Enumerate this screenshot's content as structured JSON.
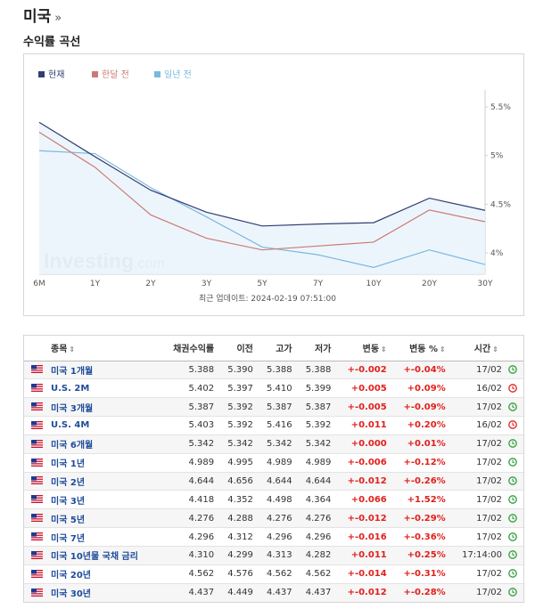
{
  "header": {
    "title": "미국",
    "chevron": "»"
  },
  "section": {
    "title": "수익률 곡선"
  },
  "chart_data": {
    "type": "line",
    "categories": [
      "6M",
      "1Y",
      "2Y",
      "3Y",
      "5Y",
      "7Y",
      "10Y",
      "20Y",
      "30Y"
    ],
    "series": [
      {
        "name": "현재",
        "color": "#2f3f73",
        "values": [
          5.342,
          4.989,
          4.644,
          4.418,
          4.276,
          4.296,
          4.31,
          4.562,
          4.437
        ]
      },
      {
        "name": "한달 전",
        "color": "#c97b73",
        "values": [
          5.24,
          4.88,
          4.39,
          4.15,
          4.03,
          4.07,
          4.11,
          4.44,
          4.32
        ]
      },
      {
        "name": "일년 전",
        "color": "#7ab8dd",
        "values": [
          5.05,
          5.02,
          4.67,
          4.37,
          4.06,
          3.98,
          3.85,
          4.03,
          3.88
        ]
      }
    ],
    "y_ticks": [
      "5.5%",
      "5%",
      "4.5%",
      "4%"
    ],
    "ylim": [
      3.78,
      5.62
    ],
    "watermark": {
      "main": "Investing",
      "suffix": ".com"
    },
    "update_label": "최근 업데이트: 2024-02-19 07:51:00",
    "legend_position": "top-left"
  },
  "table": {
    "columns": [
      "종목",
      "채권수익률",
      "이전",
      "고가",
      "저가",
      "변동",
      "변동 %",
      "시간"
    ],
    "rows": [
      {
        "name": "미국 1개월",
        "yield": "5.388",
        "prev": "5.390",
        "high": "5.388",
        "low": "5.388",
        "chg": "+-0.002",
        "pct": "+-0.04%",
        "time": "17/02",
        "status": "open"
      },
      {
        "name": "U.S. 2M",
        "yield": "5.402",
        "prev": "5.397",
        "high": "5.410",
        "low": "5.399",
        "chg": "+0.005",
        "pct": "+0.09%",
        "time": "16/02",
        "status": "closed"
      },
      {
        "name": "미국 3개월",
        "yield": "5.387",
        "prev": "5.392",
        "high": "5.387",
        "low": "5.387",
        "chg": "+-0.005",
        "pct": "+-0.09%",
        "time": "17/02",
        "status": "open"
      },
      {
        "name": "U.S. 4M",
        "yield": "5.403",
        "prev": "5.392",
        "high": "5.416",
        "low": "5.392",
        "chg": "+0.011",
        "pct": "+0.20%",
        "time": "16/02",
        "status": "closed"
      },
      {
        "name": "미국 6개월",
        "yield": "5.342",
        "prev": "5.342",
        "high": "5.342",
        "low": "5.342",
        "chg": "+0.000",
        "pct": "+0.01%",
        "time": "17/02",
        "status": "open"
      },
      {
        "name": "미국 1년",
        "yield": "4.989",
        "prev": "4.995",
        "high": "4.989",
        "low": "4.989",
        "chg": "+-0.006",
        "pct": "+-0.12%",
        "time": "17/02",
        "status": "open"
      },
      {
        "name": "미국 2년",
        "yield": "4.644",
        "prev": "4.656",
        "high": "4.644",
        "low": "4.644",
        "chg": "+-0.012",
        "pct": "+-0.26%",
        "time": "17/02",
        "status": "open"
      },
      {
        "name": "미국 3년",
        "yield": "4.418",
        "prev": "4.352",
        "high": "4.498",
        "low": "4.364",
        "chg": "+0.066",
        "pct": "+1.52%",
        "time": "17/02",
        "status": "open"
      },
      {
        "name": "미국 5년",
        "yield": "4.276",
        "prev": "4.288",
        "high": "4.276",
        "low": "4.276",
        "chg": "+-0.012",
        "pct": "+-0.29%",
        "time": "17/02",
        "status": "open"
      },
      {
        "name": "미국 7년",
        "yield": "4.296",
        "prev": "4.312",
        "high": "4.296",
        "low": "4.296",
        "chg": "+-0.016",
        "pct": "+-0.36%",
        "time": "17/02",
        "status": "open"
      },
      {
        "name": "미국 10년물 국채 금리",
        "yield": "4.310",
        "prev": "4.299",
        "high": "4.313",
        "low": "4.282",
        "chg": "+0.011",
        "pct": "+0.25%",
        "time": "17:14:00",
        "status": "open"
      },
      {
        "name": "미국 20년",
        "yield": "4.562",
        "prev": "4.576",
        "high": "4.562",
        "low": "4.562",
        "chg": "+-0.014",
        "pct": "+-0.31%",
        "time": "17/02",
        "status": "open"
      },
      {
        "name": "미국 30년",
        "yield": "4.437",
        "prev": "4.449",
        "high": "4.437",
        "low": "4.437",
        "chg": "+-0.012",
        "pct": "+-0.28%",
        "time": "17/02",
        "status": "open"
      }
    ]
  },
  "colors": {
    "open": "#2e9e3c",
    "closed": "#e0201d",
    "change": "#e0201d",
    "link": "#1f4b99"
  }
}
